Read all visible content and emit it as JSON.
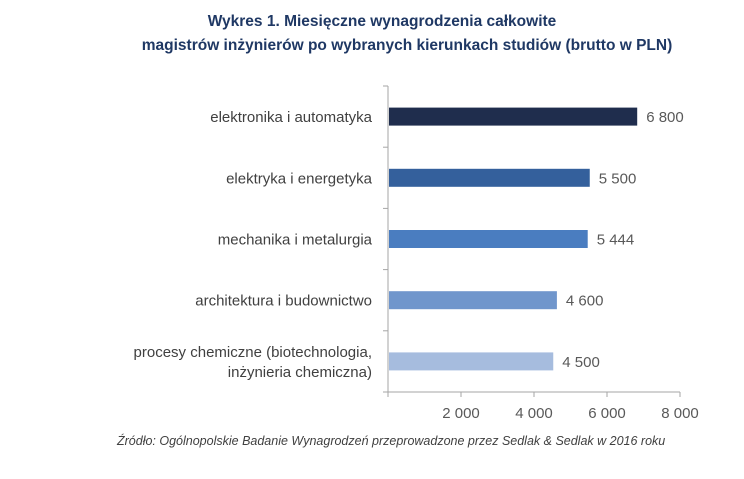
{
  "chart_data": {
    "type": "bar",
    "orientation": "horizontal",
    "title_lines": [
      "Wykres 1. Miesięczne wynagrodzenia całkowite",
      "magistrów inżynierów po wybranych kierunkach studiów (brutto w PLN)"
    ],
    "categories": [
      [
        "elektronika i automatyka"
      ],
      [
        "elektryka i energetyka"
      ],
      [
        "mechanika i metalurgia"
      ],
      [
        "architektura i budownictwo"
      ],
      [
        "procesy chemiczne (biotechnologia,",
        "inżynieria chemiczna)"
      ]
    ],
    "values": [
      6800,
      5500,
      5444,
      4600,
      4500
    ],
    "value_labels": [
      "6 800",
      "5 500",
      "5 444",
      "4 600",
      "4 500"
    ],
    "bar_colors": [
      "#1f2d4d",
      "#34609c",
      "#4a7dc0",
      "#7096cc",
      "#a6bcde"
    ],
    "x_ticks": [
      0,
      2000,
      4000,
      6000,
      8000
    ],
    "x_tick_labels": [
      "",
      "2 000",
      "4 000",
      "6 000",
      "8 000"
    ],
    "xlim": [
      0,
      8000
    ],
    "grid": false,
    "source": "Źródło: Ogólnopolskie Badanie Wynagrodzeń przeprowadzone przez Sedlak & Sedlak w 2016 roku"
  }
}
